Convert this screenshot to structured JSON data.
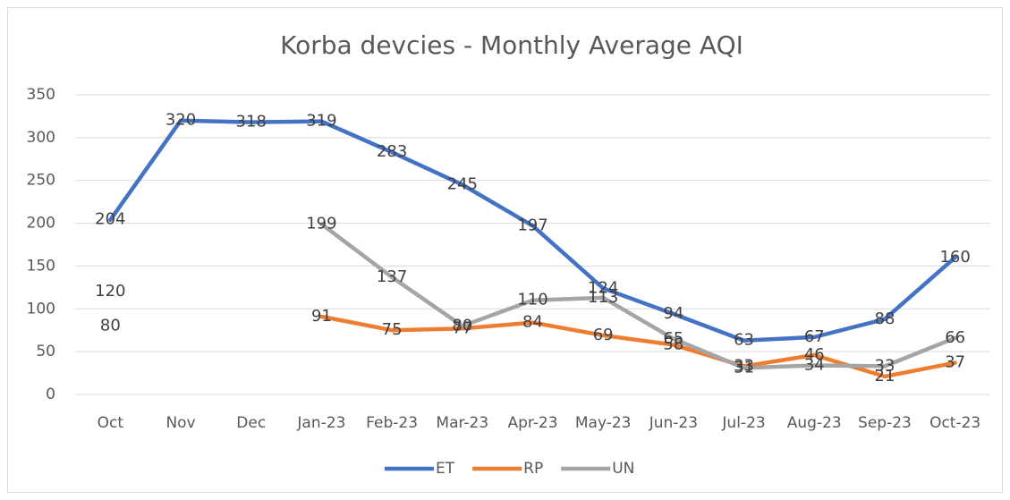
{
  "chart_data": {
    "type": "line",
    "title": "Korba devcies - Monthly Average AQI",
    "categories": [
      "Oct",
      "Nov",
      "Dec",
      "Jan-23",
      "Feb-23",
      "Mar-23",
      "Apr-23",
      "May-23",
      "Jun-23",
      "Jul-23",
      "Aug-23",
      "Sep-23",
      "Oct-23"
    ],
    "series": [
      {
        "name": "ET",
        "color": "#4472c4",
        "values": [
          204,
          320,
          318,
          319,
          283,
          245,
          197,
          124,
          94,
          63,
          67,
          88,
          160
        ]
      },
      {
        "name": "RP",
        "color": "#ed7d31",
        "values": [
          80,
          null,
          null,
          91,
          75,
          77,
          84,
          69,
          58,
          33,
          46,
          21,
          37
        ]
      },
      {
        "name": "UN",
        "color": "#a5a5a5",
        "values": [
          120,
          null,
          null,
          199,
          137,
          80,
          110,
          113,
          65,
          31,
          34,
          33,
          66
        ]
      }
    ],
    "ylim": [
      0,
      350
    ],
    "yticks": [
      0,
      50,
      100,
      150,
      200,
      250,
      300,
      350
    ],
    "grid": true,
    "legend": "bottom"
  }
}
